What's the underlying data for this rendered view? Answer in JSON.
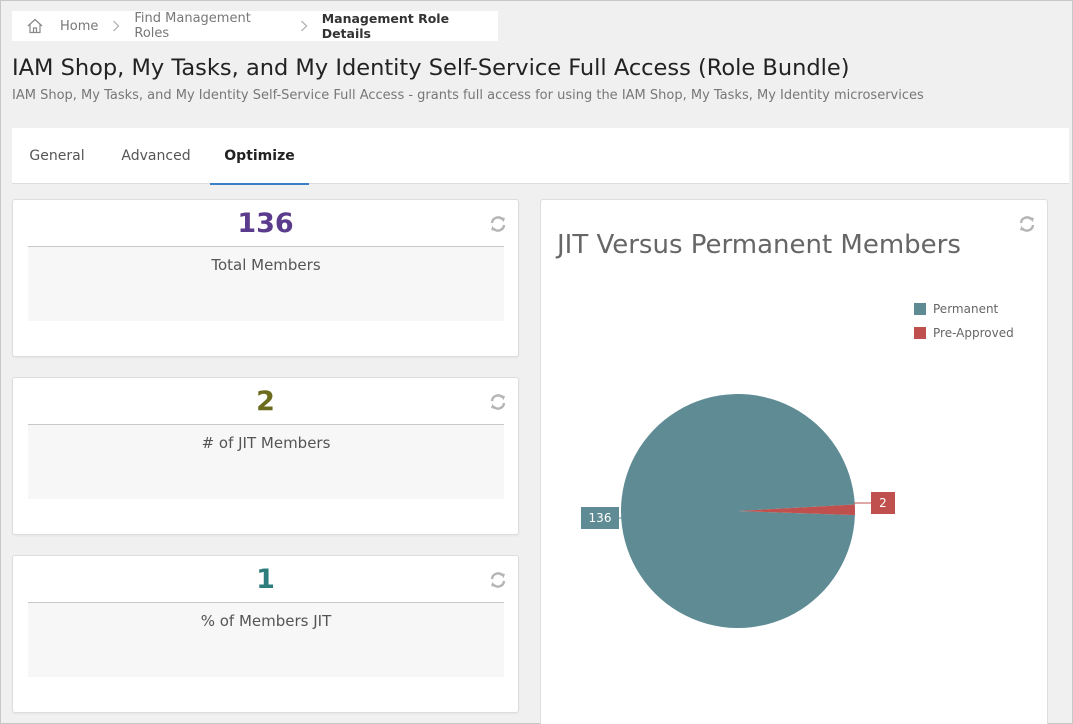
{
  "breadcrumb": {
    "items": [
      "Home",
      "Find Management Roles"
    ],
    "current": "Management Role Details"
  },
  "page": {
    "title": "IAM Shop, My Tasks, and My Identity Self-Service Full Access (Role Bundle)",
    "subtitle": "IAM Shop, My Tasks, and My Identity Self-Service Full Access - grants full access for using the IAM Shop, My Tasks, My Identity microservices"
  },
  "tabs": [
    {
      "label": "General",
      "active": false
    },
    {
      "label": "Advanced",
      "active": false
    },
    {
      "label": "Optimize",
      "active": true
    }
  ],
  "stats": [
    {
      "value": "136",
      "label": "Total Members",
      "color": "#5b3b8c"
    },
    {
      "value": "2",
      "label": "# of JIT Members",
      "color": "#6b6b1e"
    },
    {
      "value": "1",
      "label": "% of Members JIT",
      "color": "#2e7d7d"
    }
  ],
  "icons": {
    "home": "home-icon",
    "separator": "chevron-right-icon",
    "refresh": "refresh-icon"
  },
  "chart_data": {
    "type": "pie",
    "title": "JIT Versus Permanent Members",
    "legend_position": "top-right",
    "series": [
      {
        "name": "Permanent",
        "value": 136,
        "color": "#5f8b94"
      },
      {
        "name": "Pre-Approved",
        "value": 2,
        "color": "#c0504d"
      }
    ]
  }
}
